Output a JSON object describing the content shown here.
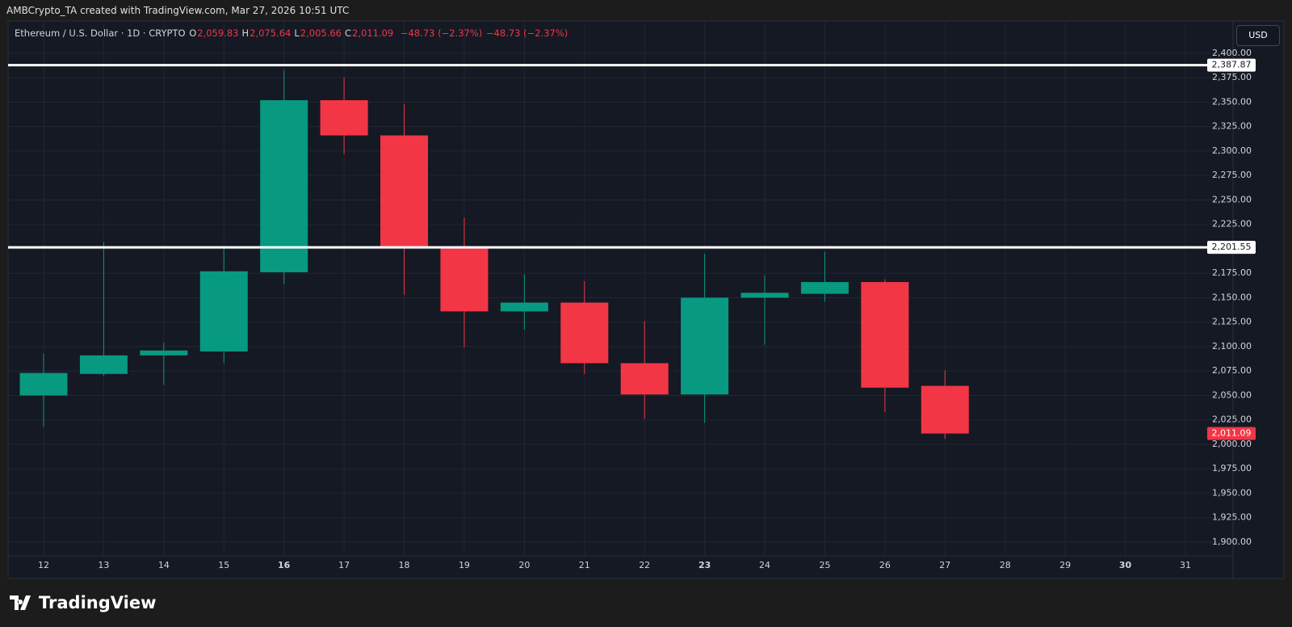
{
  "header": {
    "credit": "AMBCrypto_TA created with TradingView.com, Mar 27, 2026 10:51 UTC",
    "symbol": "Ethereum / U.S. Dollar · 1D · CRYPTO",
    "ohlc": [
      {
        "key": "O",
        "text": "2,059.83"
      },
      {
        "key": "H",
        "text": "2,075.64"
      },
      {
        "key": "L",
        "text": "2,005.66"
      },
      {
        "key": "C",
        "text": "2,011.09"
      }
    ],
    "change": [
      "−48.73 (−2.37%)",
      "−48.73 (−2.37%)"
    ],
    "currency": "USD"
  },
  "footer": {
    "brand": "TradingView"
  },
  "chart_data": {
    "type": "candlestick",
    "categories": [
      "12",
      "13",
      "14",
      "15",
      "16",
      "17",
      "18",
      "19",
      "20",
      "21",
      "22",
      "23",
      "24",
      "25",
      "26",
      "27",
      "28",
      "29",
      "30",
      "31"
    ],
    "bold_indices": [
      4,
      11,
      18
    ],
    "open": [
      2050,
      2072,
      2091,
      2095,
      2176,
      2352,
      2316,
      2202,
      2136,
      2145,
      2083,
      2051,
      2150,
      2154,
      2166,
      2059.83,
      null,
      null,
      null,
      null
    ],
    "high": [
      2093,
      2207,
      2104,
      2201,
      2383,
      2375,
      2348,
      2232,
      2174,
      2167,
      2126,
      2195,
      2173,
      2197,
      2169,
      2075.64,
      null,
      null,
      null,
      null
    ],
    "low": [
      2018,
      2070,
      2061,
      2083,
      2164,
      2297,
      2153,
      2099,
      2117,
      2072,
      2026,
      2022,
      2102,
      2146,
      2033,
      2005.66,
      null,
      null,
      null,
      null
    ],
    "close": [
      2073,
      2091,
      2096,
      2177,
      2352,
      2316,
      2202,
      2136,
      2145,
      2083,
      2051,
      2150,
      2155,
      2166,
      2058,
      2011.09,
      null,
      null,
      null,
      null
    ],
    "up_color": "#089981",
    "down_color": "#f23645",
    "ylim": [
      1876,
      2433
    ],
    "yticks": [
      {
        "value": 1900,
        "label": "1,900.00"
      },
      {
        "value": 1925,
        "label": "1,925.00"
      },
      {
        "value": 1950,
        "label": "1,950.00"
      },
      {
        "value": 1975,
        "label": "1,975.00"
      },
      {
        "value": 2000,
        "label": "2,000.00"
      },
      {
        "value": 2025,
        "label": "2,025.00"
      },
      {
        "value": 2050,
        "label": "2,050.00"
      },
      {
        "value": 2075,
        "label": "2,075.00"
      },
      {
        "value": 2100,
        "label": "2,100.00"
      },
      {
        "value": 2125,
        "label": "2,125.00"
      },
      {
        "value": 2150,
        "label": "2,150.00"
      },
      {
        "value": 2175,
        "label": "2,175.00"
      },
      {
        "value": 2200,
        "label": "2,200.00"
      },
      {
        "value": 2225,
        "label": "2,225.00"
      },
      {
        "value": 2250,
        "label": "2,250.00"
      },
      {
        "value": 2275,
        "label": "2,275.00"
      },
      {
        "value": 2300,
        "label": "2,300.00"
      },
      {
        "value": 2325,
        "label": "2,325.00"
      },
      {
        "value": 2350,
        "label": "2,350.00"
      },
      {
        "value": 2375,
        "label": "2,375.00"
      },
      {
        "value": 2400,
        "label": "2,400.00"
      }
    ],
    "grid": true,
    "hlines": [
      {
        "value": 2387.87,
        "label": "2,387.87"
      },
      {
        "value": 2201.55,
        "label": "2,201.55"
      }
    ],
    "last_price": {
      "value": 2011.09,
      "label": "2,011.09"
    }
  }
}
